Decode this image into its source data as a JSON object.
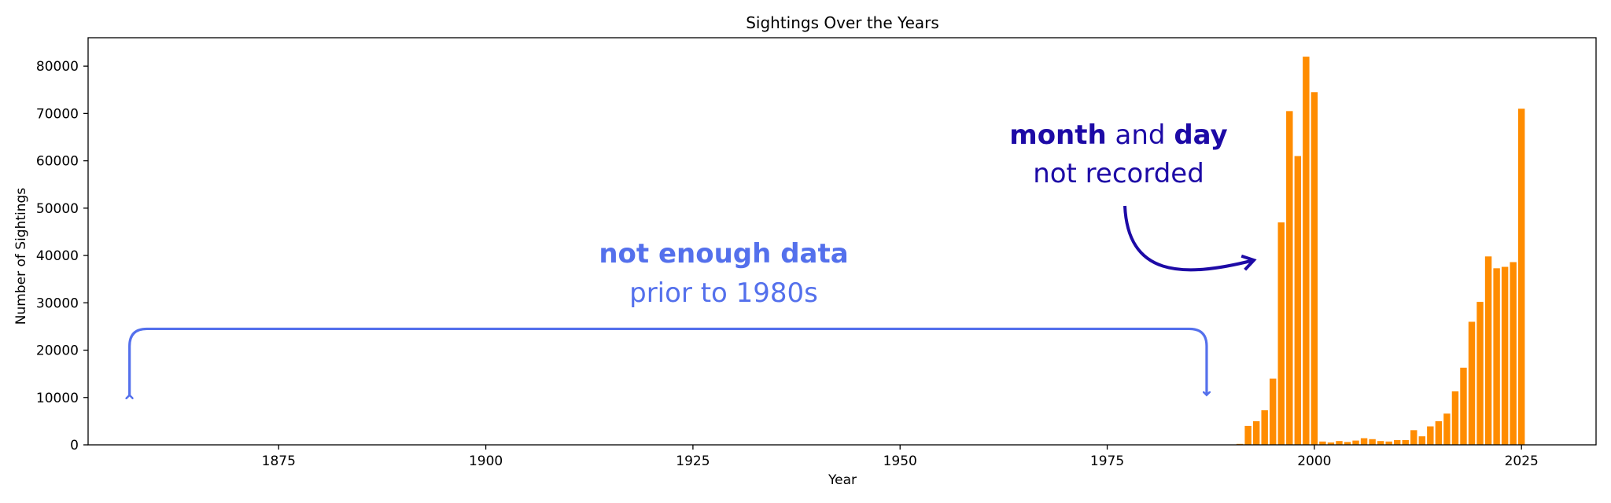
{
  "chart_data": {
    "type": "bar",
    "title": "Sightings Over the Years",
    "xlabel": "Year",
    "ylabel": "Number of Sightings",
    "xlim": [
      1852,
      2034
    ],
    "ylim": [
      0,
      86000
    ],
    "xticks": [
      1875,
      1900,
      1925,
      1950,
      1975,
      2000,
      2025
    ],
    "yticks": [
      0,
      10000,
      20000,
      30000,
      40000,
      50000,
      60000,
      70000,
      80000
    ],
    "grid": false,
    "legend": "none",
    "colors": {
      "bars": "#ff8c00",
      "annotation_light": "#5470ec",
      "annotation_dark": "#1d0aa6"
    },
    "x": [
      1991,
      1992,
      1993,
      1994,
      1995,
      1996,
      1997,
      1998,
      1999,
      2000,
      2001,
      2002,
      2003,
      2004,
      2005,
      2006,
      2007,
      2008,
      2009,
      2010,
      2011,
      2012,
      2013,
      2014,
      2015,
      2016,
      2017,
      2018,
      2019,
      2020,
      2021,
      2022,
      2023,
      2024,
      2025
    ],
    "values": [
      200,
      4000,
      5000,
      7300,
      14000,
      47000,
      70500,
      61000,
      82000,
      74500,
      700,
      500,
      800,
      600,
      900,
      1400,
      1200,
      800,
      700,
      1000,
      1000,
      3100,
      1800,
      3900,
      5000,
      6600,
      11300,
      16300,
      26000,
      30200,
      39800,
      37300,
      37600,
      38600,
      71000
    ]
  },
  "annotations": {
    "left": {
      "bold_text": "not enough data",
      "text": "prior to 1980s",
      "range_years": [
        1857,
        1987
      ],
      "y_values": [
        24500,
        10500
      ]
    },
    "right": {
      "bold1": "month",
      "mid": " and ",
      "bold2": "day",
      "line2": "not recorded"
    }
  }
}
